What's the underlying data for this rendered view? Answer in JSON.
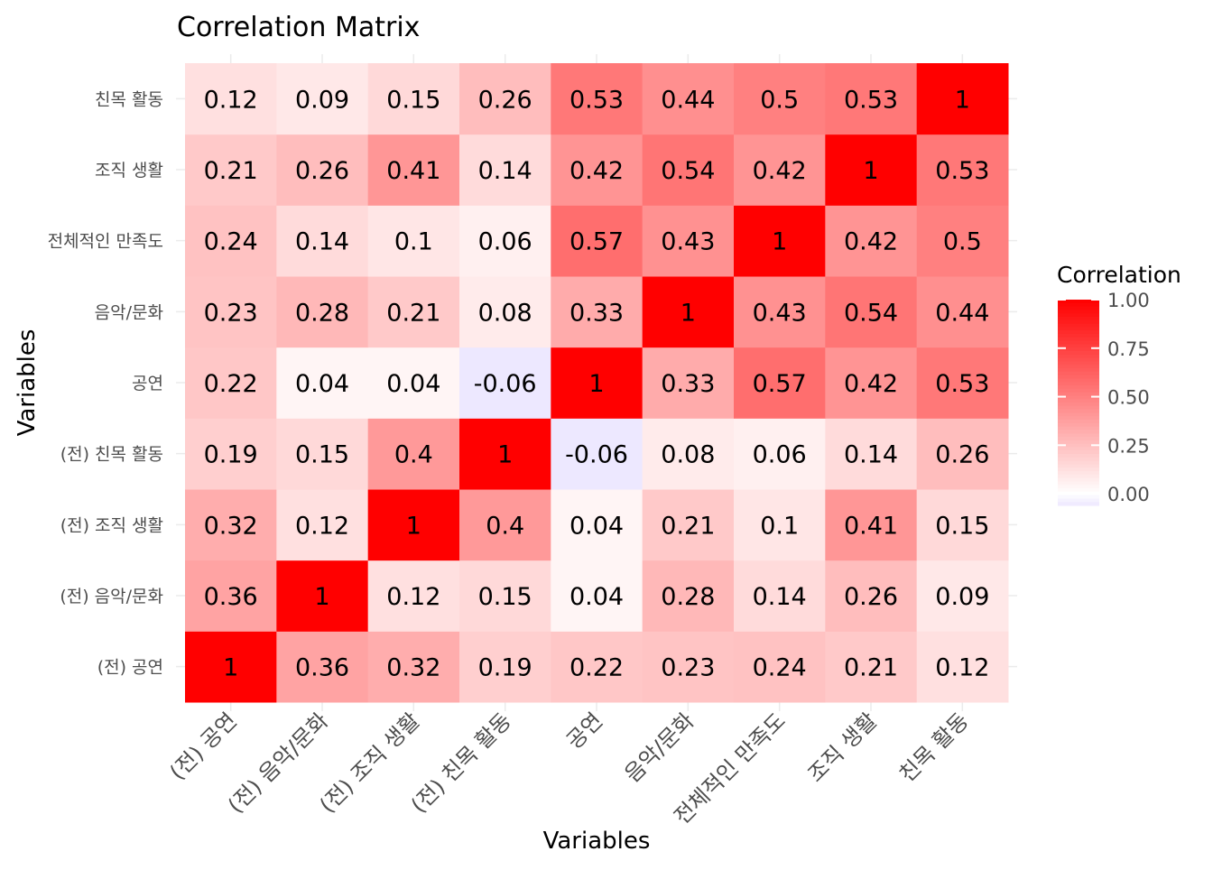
{
  "chart_data": {
    "type": "heatmap",
    "title": "Correlation Matrix",
    "xlabel": "Variables",
    "ylabel": "Variables",
    "variables": [
      "(전) 공연",
      "(전) 음악/문화",
      "(전) 조직 생활",
      "(전) 친목 활동",
      "공연",
      "음악/문화",
      "전체적인 만족도",
      "조직 생활",
      "친목 활동"
    ],
    "cell_labels": [
      [
        "1",
        "0.36",
        "0.32",
        "0.19",
        "0.22",
        "0.23",
        "0.24",
        "0.21",
        "0.12"
      ],
      [
        "0.36",
        "1",
        "0.12",
        "0.15",
        "0.04",
        "0.28",
        "0.14",
        "0.26",
        "0.09"
      ],
      [
        "0.32",
        "0.12",
        "1",
        "0.4",
        "0.04",
        "0.21",
        "0.1",
        "0.41",
        "0.15"
      ],
      [
        "0.19",
        "0.15",
        "0.4",
        "1",
        "-0.06",
        "0.08",
        "0.06",
        "0.14",
        "0.26"
      ],
      [
        "0.22",
        "0.04",
        "0.04",
        "-0.06",
        "1",
        "0.33",
        "0.57",
        "0.42",
        "0.53"
      ],
      [
        "0.23",
        "0.28",
        "0.21",
        "0.08",
        "0.33",
        "1",
        "0.43",
        "0.54",
        "0.44"
      ],
      [
        "0.24",
        "0.14",
        "0.1",
        "0.06",
        "0.57",
        "0.43",
        "1",
        "0.42",
        "0.5"
      ],
      [
        "0.21",
        "0.26",
        "0.41",
        "0.14",
        "0.42",
        "0.54",
        "0.42",
        "1",
        "0.53"
      ],
      [
        "0.12",
        "0.09",
        "0.15",
        "0.26",
        "0.53",
        "0.44",
        "0.5",
        "0.53",
        "1"
      ]
    ],
    "matrix": [
      [
        1,
        0.36,
        0.32,
        0.19,
        0.22,
        0.23,
        0.24,
        0.21,
        0.12
      ],
      [
        0.36,
        1,
        0.12,
        0.15,
        0.04,
        0.28,
        0.14,
        0.26,
        0.09
      ],
      [
        0.32,
        0.12,
        1,
        0.4,
        0.04,
        0.21,
        0.1,
        0.41,
        0.15
      ],
      [
        0.19,
        0.15,
        0.4,
        1,
        -0.06,
        0.08,
        0.06,
        0.14,
        0.26
      ],
      [
        0.22,
        0.04,
        0.04,
        -0.06,
        1,
        0.33,
        0.57,
        0.42,
        0.53
      ],
      [
        0.23,
        0.28,
        0.21,
        0.08,
        0.33,
        1,
        0.43,
        0.54,
        0.44
      ],
      [
        0.24,
        0.14,
        0.1,
        0.06,
        0.57,
        0.43,
        1,
        0.42,
        0.5
      ],
      [
        0.21,
        0.26,
        0.41,
        0.14,
        0.42,
        0.54,
        0.42,
        1,
        0.53
      ],
      [
        0.12,
        0.09,
        0.15,
        0.26,
        0.53,
        0.44,
        0.5,
        0.53,
        1
      ]
    ],
    "legend": {
      "title": "Correlation",
      "tick_labels": [
        "1.00",
        "0.75",
        "0.50",
        "0.25",
        "0.00"
      ],
      "tick_values": [
        1,
        0.75,
        0.5,
        0.25,
        0
      ],
      "range": [
        -0.06,
        1
      ],
      "placement": "right"
    },
    "colors": {
      "low": "#EDE8FF",
      "mid": "#FFFFFF",
      "high": "#FF0000",
      "grid": "#EBEBEB",
      "text": "#000000",
      "axis_text": "#4D4D4D"
    },
    "grid": true
  }
}
